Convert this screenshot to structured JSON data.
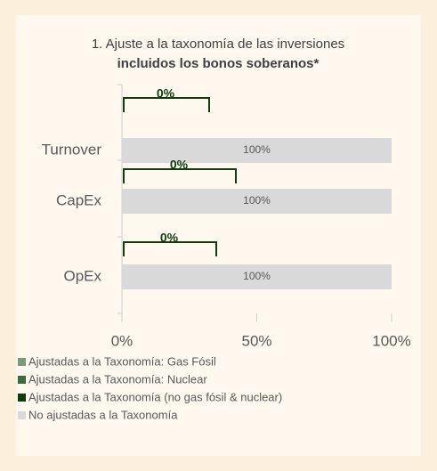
{
  "chart_data": {
    "type": "stacked-bar-horizontal",
    "title": "1. Ajuste a la taxonomía de las inversiones",
    "subtitle": "incluidos los bonos soberanos*",
    "categories": [
      "Turnover",
      "CapEx",
      "OpEx"
    ],
    "series": [
      {
        "name": "Ajustadas a la Taxonomía: Gas Fósil",
        "color": "#7c9a7c",
        "values": [
          0,
          0,
          0
        ]
      },
      {
        "name": "Ajustadas a la Taxonomía: Nuclear",
        "color": "#3e6b3e",
        "values": [
          0,
          0,
          0
        ]
      },
      {
        "name": "Ajustadas a la Taxonomía (no gas fósil & nuclear)",
        "color": "#0f3d0f",
        "values": [
          0,
          0,
          0
        ],
        "value_labels": [
          "0%",
          "0%",
          "0%"
        ]
      },
      {
        "name": "No ajustadas a la Taxonomía",
        "color": "#d9d9d9",
        "values": [
          100,
          100,
          100
        ],
        "value_labels": [
          "100%",
          "100%",
          "100%"
        ]
      }
    ],
    "xlim": [
      0,
      100
    ],
    "xticks": [
      {
        "value": 0,
        "label": "0%"
      },
      {
        "value": 50,
        "label": "50%"
      },
      {
        "value": 100,
        "label": "100%"
      }
    ],
    "legend": "bottom-left"
  }
}
